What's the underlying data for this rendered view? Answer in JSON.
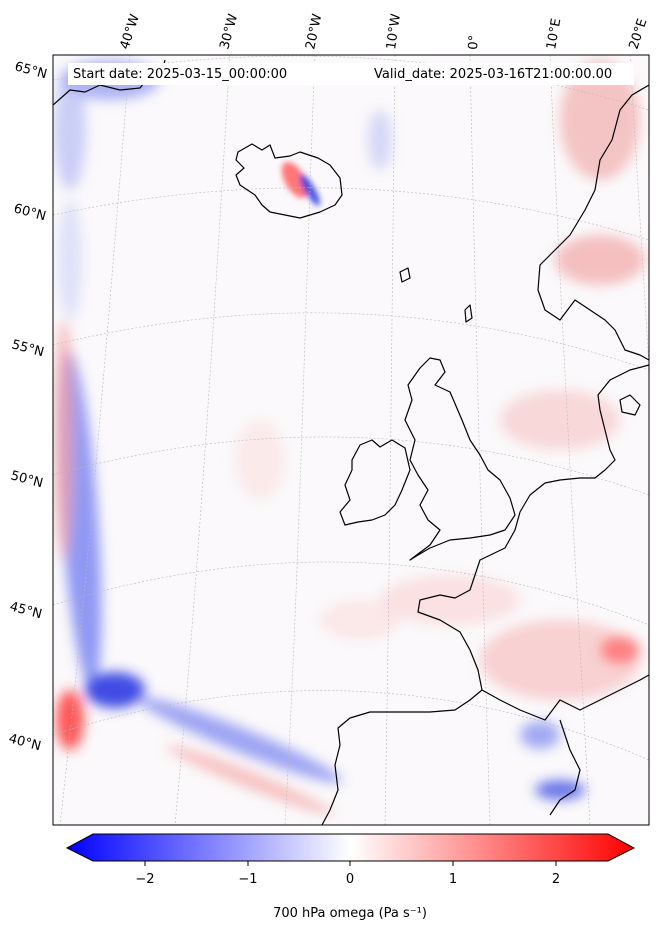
{
  "map": {
    "start_date": "Start date: 2025-03-15_00:00:00",
    "valid_date": "Valid_date: 2025-03-16T21:00:00.00",
    "lon_labels": [
      "40°W",
      "30°W",
      "20°W",
      "10°W",
      "0°",
      "10°E",
      "20°E"
    ],
    "lat_labels": [
      "65°N",
      "60°N",
      "55°N",
      "50°N",
      "45°N",
      "40°N"
    ],
    "variable": "700 hPa omega",
    "units": "Pa s⁻¹",
    "colormap": {
      "low": "#0000ff",
      "mid": "#ffffff",
      "high": "#ff0000"
    }
  },
  "colorbar": {
    "ticks": [
      "−2",
      "−1",
      "0",
      "1",
      "2"
    ],
    "label": "700 hPa omega (Pa s⁻¹)",
    "vmin": -2.6,
    "vmax": 2.6
  }
}
